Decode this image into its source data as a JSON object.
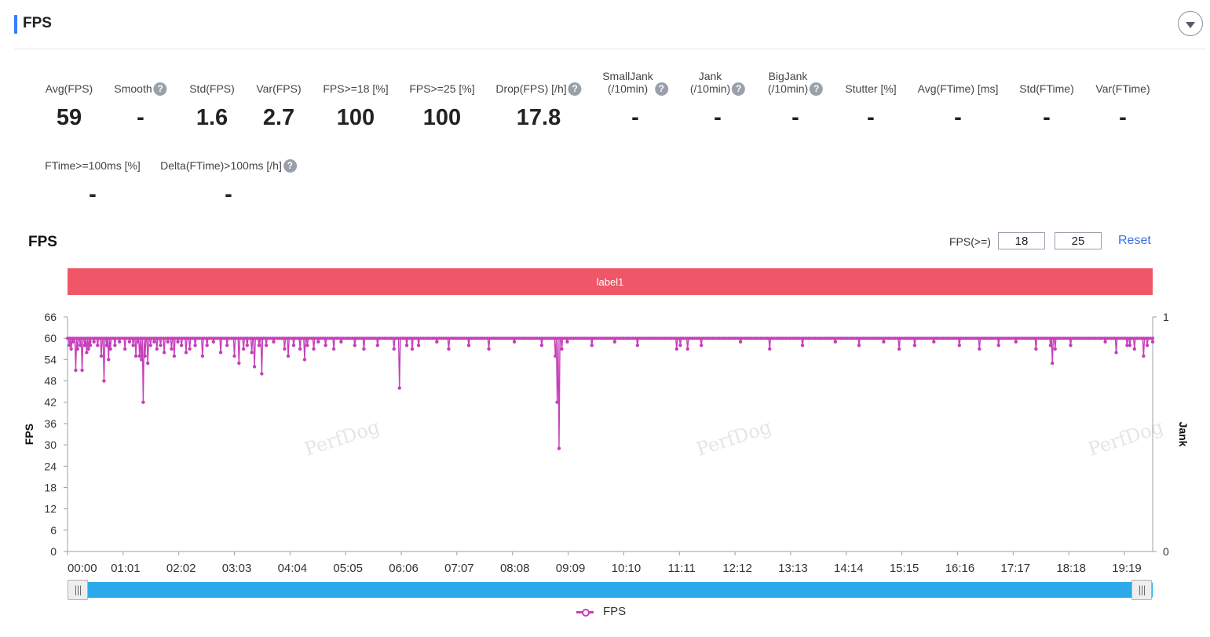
{
  "header": {
    "title": "FPS"
  },
  "metrics_row1": [
    {
      "label": "Avg(FPS)",
      "value": "59",
      "help": false
    },
    {
      "label": "Smooth",
      "value": "-",
      "help": true
    },
    {
      "label": "Std(FPS)",
      "value": "1.6",
      "help": false
    },
    {
      "label": "Var(FPS)",
      "value": "2.7",
      "help": false
    },
    {
      "label": "FPS>=18 [%]",
      "value": "100",
      "help": false
    },
    {
      "label": "FPS>=25 [%]",
      "value": "100",
      "help": false
    },
    {
      "label": "Drop(FPS) [/h]",
      "value": "17.8",
      "help": true
    },
    {
      "label": "SmallJank\n(/10min)",
      "value": "-",
      "help": true
    },
    {
      "label": "Jank\n(/10min)",
      "value": "-",
      "help": true
    },
    {
      "label": "BigJank\n(/10min)",
      "value": "-",
      "help": true
    },
    {
      "label": "Stutter [%]",
      "value": "-",
      "help": false
    },
    {
      "label": "Avg(FTime) [ms]",
      "value": "-",
      "help": false
    },
    {
      "label": "Std(FTime)",
      "value": "-",
      "help": false
    },
    {
      "label": "Var(FTime)",
      "value": "-",
      "help": false
    }
  ],
  "metrics_row2": [
    {
      "label": "FTime>=100ms [%]",
      "value": "-",
      "help": false
    },
    {
      "label": "Delta(FTime)>100ms [/h]",
      "value": "-",
      "help": true
    }
  ],
  "chart_panel": {
    "title": "FPS",
    "threshold_label": "FPS(>=)",
    "threshold_1": "18",
    "threshold_2": "25",
    "reset_label": "Reset",
    "band_label": "label1",
    "watermark": "PerfDog",
    "legend_label": "FPS",
    "help_glyph": "?",
    "slider_grip": "|||"
  },
  "chart_data": {
    "type": "line",
    "title": "",
    "ylabel": "FPS",
    "y2label": "Jank",
    "ylim": [
      0,
      66
    ],
    "y2lim": [
      0,
      1
    ],
    "yticks": [
      0,
      6,
      12,
      18,
      24,
      30,
      36,
      42,
      48,
      54,
      60,
      66
    ],
    "y2ticks": [
      0,
      1
    ],
    "xlabel": "",
    "xticks": [
      "00:00",
      "01:01",
      "02:02",
      "03:03",
      "04:04",
      "05:05",
      "06:06",
      "07:07",
      "08:08",
      "09:09",
      "10:10",
      "11:11",
      "12:12",
      "13:13",
      "14:14",
      "15:15",
      "16:16",
      "17:17",
      "18:18",
      "19:19"
    ],
    "x_unit": "minutes",
    "x_range": [
      0,
      1190
    ],
    "tick_interval_minutes": 61,
    "baseline_fps": 60,
    "grid": false,
    "legend_position": "bottom-center",
    "color": "#c540b9",
    "series": [
      {
        "name": "FPS",
        "points": [
          [
            2,
            58
          ],
          [
            4,
            57
          ],
          [
            6,
            59
          ],
          [
            9,
            51
          ],
          [
            11,
            57
          ],
          [
            14,
            58
          ],
          [
            16,
            51
          ],
          [
            19,
            58
          ],
          [
            21,
            56
          ],
          [
            23,
            57
          ],
          [
            25,
            58
          ],
          [
            29,
            59
          ],
          [
            33,
            58
          ],
          [
            37,
            55
          ],
          [
            40,
            48
          ],
          [
            43,
            58
          ],
          [
            45,
            54
          ],
          [
            47,
            57
          ],
          [
            52,
            58
          ],
          [
            57,
            59
          ],
          [
            63,
            57
          ],
          [
            68,
            59
          ],
          [
            72,
            58
          ],
          [
            75,
            55
          ],
          [
            77,
            59
          ],
          [
            79,
            55
          ],
          [
            81,
            54
          ],
          [
            83,
            42
          ],
          [
            85,
            55
          ],
          [
            88,
            53
          ],
          [
            91,
            58
          ],
          [
            95,
            59
          ],
          [
            98,
            57
          ],
          [
            102,
            58
          ],
          [
            106,
            56
          ],
          [
            110,
            59
          ],
          [
            114,
            57
          ],
          [
            117,
            55
          ],
          [
            121,
            59
          ],
          [
            125,
            58
          ],
          [
            130,
            56
          ],
          [
            134,
            57
          ],
          [
            140,
            58
          ],
          [
            148,
            55
          ],
          [
            153,
            58
          ],
          [
            160,
            59
          ],
          [
            168,
            56
          ],
          [
            175,
            58
          ],
          [
            183,
            55
          ],
          [
            188,
            53
          ],
          [
            193,
            57
          ],
          [
            197,
            58
          ],
          [
            202,
            56
          ],
          [
            205,
            52
          ],
          [
            210,
            58
          ],
          [
            213,
            50
          ],
          [
            218,
            58
          ],
          [
            226,
            59
          ],
          [
            238,
            57
          ],
          [
            242,
            55
          ],
          [
            248,
            58
          ],
          [
            255,
            57
          ],
          [
            260,
            54
          ],
          [
            263,
            58
          ],
          [
            270,
            57
          ],
          [
            275,
            59
          ],
          [
            283,
            58
          ],
          [
            292,
            57
          ],
          [
            300,
            59
          ],
          [
            315,
            58
          ],
          [
            325,
            57
          ],
          [
            340,
            58
          ],
          [
            358,
            57
          ],
          [
            364,
            46
          ],
          [
            372,
            58
          ],
          [
            378,
            57
          ],
          [
            385,
            58
          ],
          [
            405,
            59
          ],
          [
            418,
            57
          ],
          [
            440,
            58
          ],
          [
            462,
            57
          ],
          [
            490,
            59
          ],
          [
            520,
            58
          ],
          [
            535,
            55
          ],
          [
            537,
            42
          ],
          [
            539,
            29
          ],
          [
            542,
            57
          ],
          [
            548,
            59
          ],
          [
            575,
            58
          ],
          [
            600,
            59
          ],
          [
            625,
            58
          ],
          [
            668,
            57
          ],
          [
            672,
            58
          ],
          [
            680,
            57
          ],
          [
            695,
            58
          ],
          [
            738,
            59
          ],
          [
            770,
            57
          ],
          [
            806,
            58
          ],
          [
            842,
            59
          ],
          [
            868,
            58
          ],
          [
            895,
            59
          ],
          [
            912,
            57
          ],
          [
            929,
            58
          ],
          [
            950,
            59
          ],
          [
            978,
            58
          ],
          [
            1000,
            57
          ],
          [
            1021,
            58
          ],
          [
            1040,
            59
          ],
          [
            1062,
            57
          ],
          [
            1078,
            58
          ],
          [
            1080,
            53
          ],
          [
            1083,
            57
          ],
          [
            1100,
            58
          ],
          [
            1138,
            59
          ],
          [
            1150,
            56
          ],
          [
            1162,
            58
          ],
          [
            1165,
            58
          ],
          [
            1170,
            57
          ],
          [
            1180,
            55
          ],
          [
            1184,
            58
          ],
          [
            1190,
            59
          ]
        ]
      }
    ]
  }
}
